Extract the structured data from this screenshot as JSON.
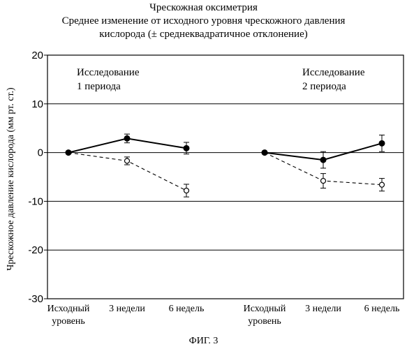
{
  "title_lines": [
    "Чрескожная оксиметрия",
    "Среднее изменение от исходного уровня чрескожного давления",
    "кислорода (± среднеквадратичное отклонение)"
  ],
  "figure_caption": "ФИГ. 3",
  "chart_data": {
    "type": "line",
    "ylabel": "Чрескожное давление кислорода (мм рт. ст.)",
    "ylim": [
      -30,
      20
    ],
    "yticks": [
      20,
      10,
      0,
      -10,
      -20,
      -30
    ],
    "grid": true,
    "categories": [
      "Исходный уровень",
      "3 недели",
      "6 недель"
    ],
    "category_label_lines": [
      [
        "Исходный",
        "уровень"
      ],
      [
        "3 недели"
      ],
      [
        "6 недель"
      ]
    ],
    "panels": [
      {
        "label_lines": [
          "Исследование",
          "1 периода"
        ],
        "series": [
          {
            "marker": "filled",
            "line": "solid",
            "values": [
              0,
              2.9,
              0.9
            ],
            "err": [
              0,
              0.9,
              1.2
            ]
          },
          {
            "marker": "open",
            "line": "dashed",
            "values": [
              0,
              -1.7,
              -7.8
            ],
            "err": [
              0,
              0.8,
              1.3
            ]
          }
        ]
      },
      {
        "label_lines": [
          "Исследование",
          "2 периода"
        ],
        "series": [
          {
            "marker": "filled",
            "line": "solid",
            "values": [
              0,
              -1.5,
              1.9
            ],
            "err": [
              0,
              1.7,
              1.7
            ]
          },
          {
            "marker": "open",
            "line": "dashed",
            "values": [
              0,
              -5.8,
              -6.6
            ],
            "err": [
              0,
              1.5,
              1.3
            ]
          }
        ]
      }
    ]
  }
}
